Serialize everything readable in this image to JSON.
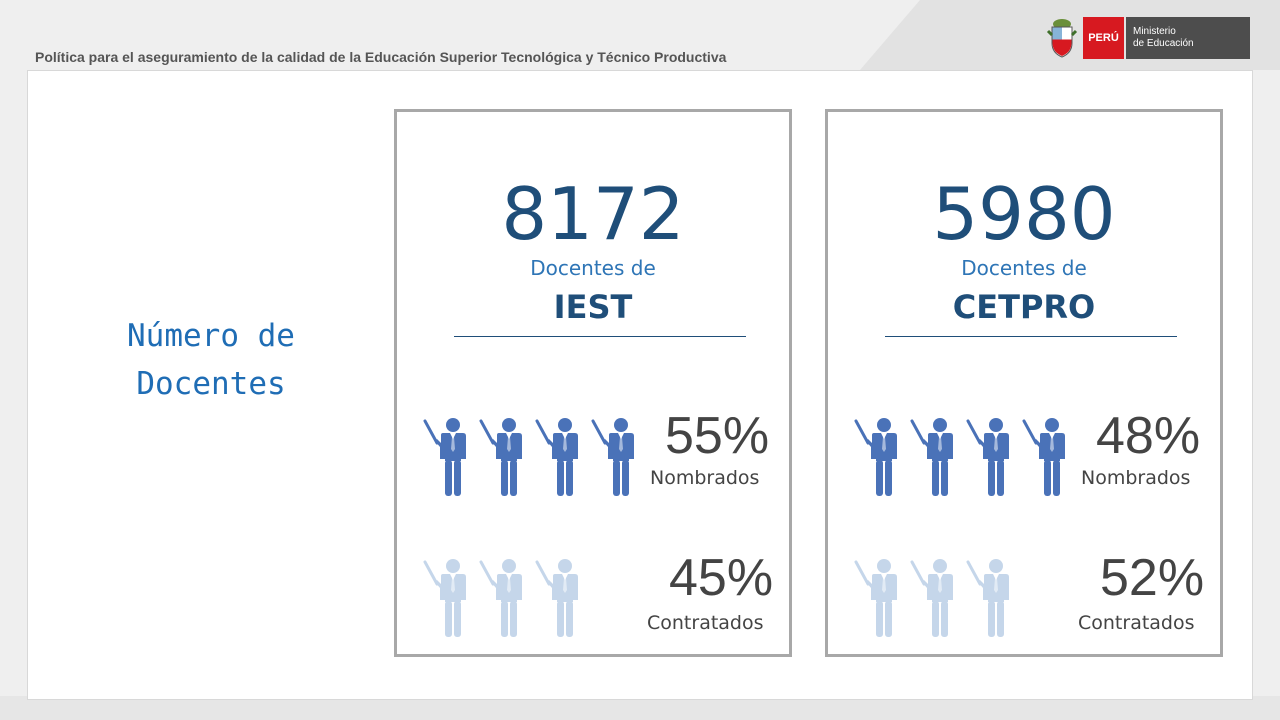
{
  "header": {
    "title": "Política para el aseguramiento de la calidad de la Educación Superior Tecnológica y Técnico Productiva",
    "logo": {
      "country": "PERÚ",
      "ministry_line1": "Ministerio",
      "ministry_line2": "de Educación",
      "shield_icon": "peru-coat-of-arms-icon"
    }
  },
  "section_title": "Número de Docentes",
  "colors": {
    "dark_figure": "#4a72b8",
    "light_figure": "#c5d6ea",
    "number": "#1f4e79",
    "title": "#1f6db5"
  },
  "cards": [
    {
      "total": "8172",
      "subtitle": "Docentes de",
      "name": "IEST",
      "nombrados": {
        "value": "55%",
        "label": "Nombrados",
        "figures": 4
      },
      "contratados": {
        "value": "45%",
        "label": "Contratados",
        "figures": 3
      }
    },
    {
      "total": "5980",
      "subtitle": "Docentes de",
      "name": "CETPRO",
      "nombrados": {
        "value": "48%",
        "label": "Nombrados",
        "figures": 4
      },
      "contratados": {
        "value": "52%",
        "label": "Contratados",
        "figures": 3
      }
    }
  ]
}
